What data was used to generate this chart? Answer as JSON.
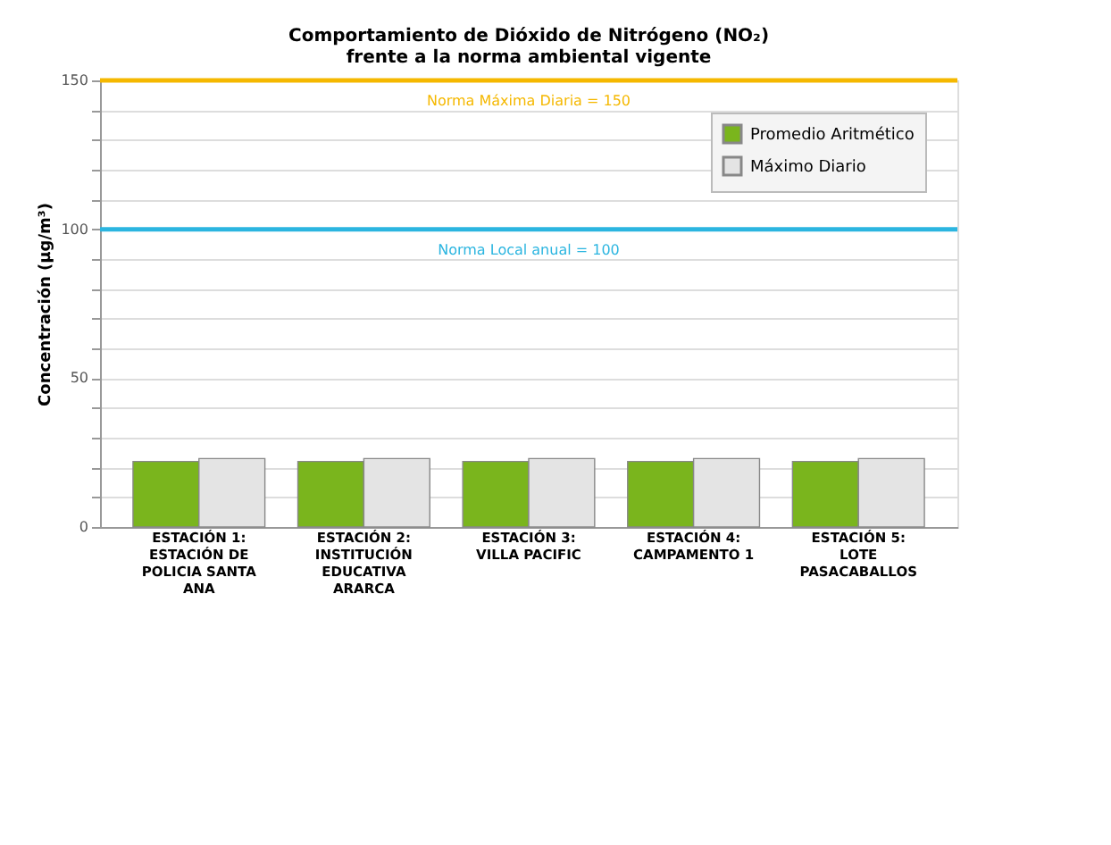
{
  "chart_data": {
    "type": "bar",
    "title": "Comportamiento de Dióxido de Nitrógeno (NO₂)\nfrente a la norma ambiental vigente",
    "ylabel": "Concentración (µg/m³)",
    "categories": [
      "ESTACIÓN 1: ESTACIÓN DE POLICIA SANTA ANA",
      "ESTACIÓN 2: INSTITUCIÓN EDUCATIVA ARARCA",
      "ESTACIÓN 3: VILLA PACIFIC",
      "ESTACIÓN 4: CAMPAMENTO 1",
      "ESTACIÓN 5: LOTE PASACABALLOS"
    ],
    "series": [
      {
        "name": "Promedio Aritmético",
        "color": "#7ab51d",
        "values": [
          22,
          22,
          22,
          22,
          22
        ]
      },
      {
        "name": "Máximo Diario",
        "color": "#e4e4e4",
        "values": [
          23,
          23,
          23,
          23,
          23
        ]
      }
    ],
    "ylim": [
      0,
      150
    ],
    "yticks": [
      0,
      {
        "value": 10,
        "label": null
      },
      {
        "value": 20,
        "label": null
      },
      {
        "value": 30,
        "label": null
      },
      {
        "value": 40,
        "label": null
      },
      50,
      {
        "value": 60,
        "label": null
      },
      {
        "value": 70,
        "label": null
      },
      {
        "value": 80,
        "label": null
      },
      {
        "value": 90,
        "label": null
      },
      100,
      {
        "value": 110,
        "label": null
      },
      {
        "value": 120,
        "label": null
      },
      {
        "value": 130,
        "label": null
      },
      {
        "value": 140,
        "label": null
      },
      150
    ],
    "ref_lines": [
      {
        "axis": "y",
        "value": 150,
        "label": "Norma Máxima Diaria = 150",
        "color": "#f5b800"
      },
      {
        "axis": "y",
        "value": 100,
        "label": "Norma Local anual = 100",
        "color": "#2bb5e0"
      }
    ],
    "grid": "y",
    "legend": "top right"
  }
}
